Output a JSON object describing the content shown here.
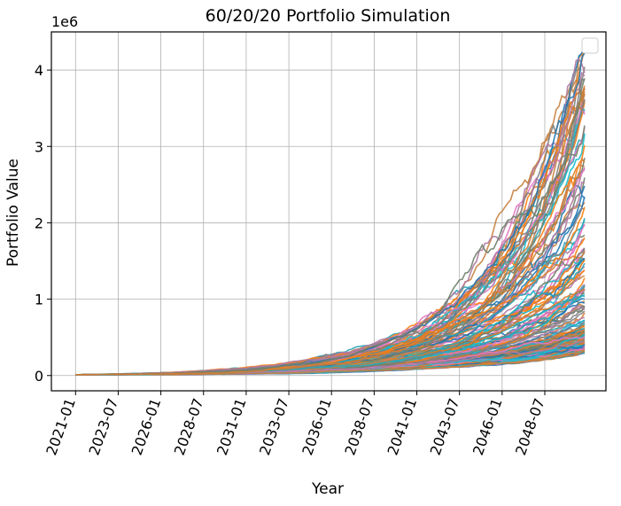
{
  "chart_data": {
    "type": "line",
    "title": "60/20/20 Portfolio Simulation",
    "xlabel": "Year",
    "ylabel": "Portfolio Value",
    "y_offset_label": "1e6",
    "y_scale_factor": 1000000,
    "x_start": "2021-01",
    "x_end": "2050-12",
    "x_tick_labels": [
      "2021-01",
      "2023-07",
      "2026-01",
      "2028-07",
      "2031-01",
      "2033-07",
      "2036-01",
      "2038-07",
      "2041-01",
      "2043-07",
      "2046-01",
      "2048-07"
    ],
    "y_ticks": [
      0,
      1,
      2,
      3,
      4
    ],
    "ylim": [
      -0.2,
      4.5
    ],
    "grid": true,
    "legend": "top-right, empty",
    "start_value": 10000,
    "series_colors": [
      "#1f77b4",
      "#ff7f0e",
      "#2ca02c",
      "#d62728",
      "#9467bd",
      "#8c564b",
      "#e377c2",
      "#7f7f7f",
      "#bcbd22",
      "#17becf"
    ],
    "final_value_envelope": {
      "min": 300000,
      "median": 900000,
      "max": 4400000
    },
    "series_count": 200
  }
}
